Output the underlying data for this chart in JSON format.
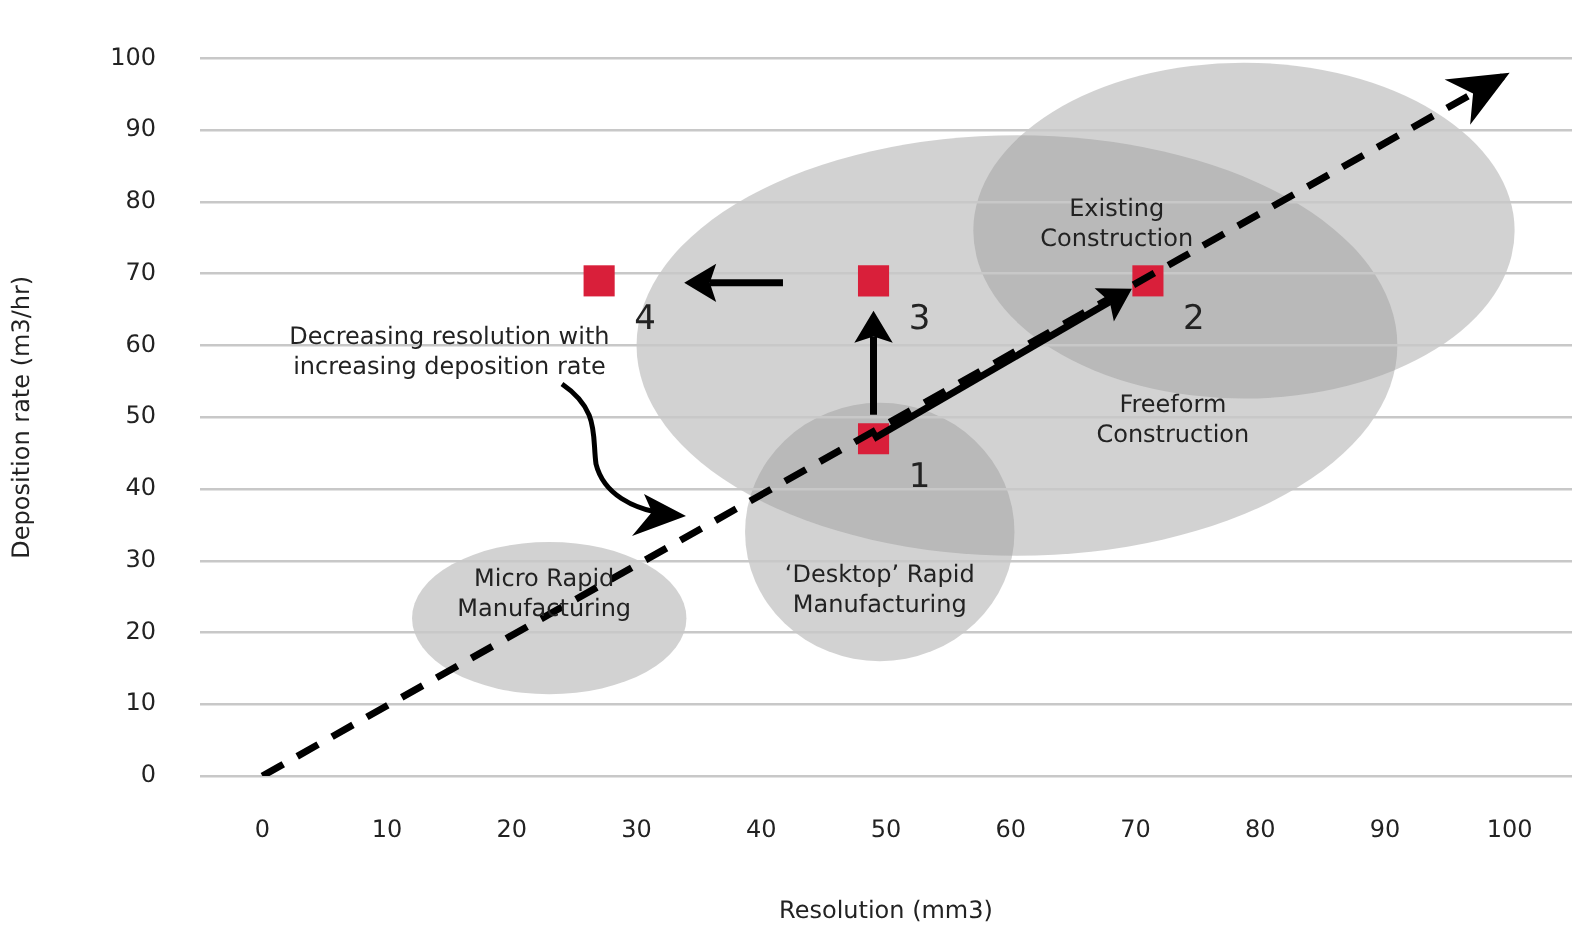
{
  "chart_data": {
    "type": "scatter",
    "xlabel": "Resolution (mm3)",
    "ylabel": "Deposition rate (m3/hr)",
    "xlim": [
      -5,
      105
    ],
    "xticks": [
      0,
      10,
      20,
      30,
      40,
      50,
      60,
      70,
      80,
      90,
      100
    ],
    "ylim": [
      0,
      100
    ],
    "yticks": [
      0,
      10,
      20,
      30,
      40,
      50,
      60,
      70,
      80,
      90,
      100
    ],
    "grid": "y",
    "legend": false,
    "marker": "square",
    "series": [
      {
        "type": "line",
        "color": "#000000",
        "line_style": "dashed",
        "marker": "none",
        "x": [
          0,
          100
        ],
        "values": [
          0,
          98
        ]
      },
      {
        "type": "scatter",
        "color": "#d91f3a",
        "x": [
          49,
          71,
          49,
          27
        ],
        "values": [
          47,
          69,
          69,
          69
        ]
      }
    ],
    "annotations": [
      {
        "text": "1",
        "x": 49,
        "y": 47
      },
      {
        "text": "2",
        "x": 71,
        "y": 69
      },
      {
        "text": "3",
        "x": 49,
        "y": 69
      },
      {
        "text": "4",
        "x": 27,
        "y": 69
      },
      "Micro Rapid Manufacturing",
      "‘Desktop’ Rapid Manufacturing",
      "Freeform Construction",
      "Existing Construction",
      "Decreasing resolution with increasing deposition rate"
    ]
  }
}
